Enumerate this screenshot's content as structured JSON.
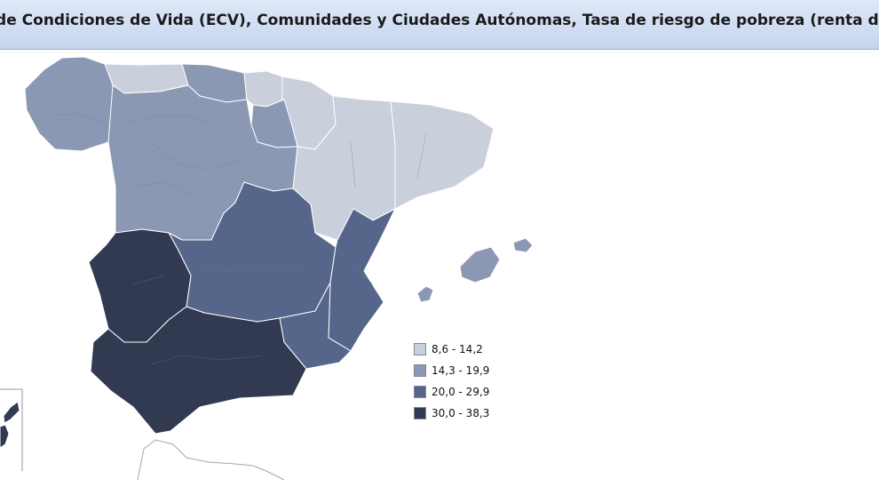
{
  "header": {
    "title": "Encuesta de Condiciones de Vida (ECV), Comunidades y Ciudades Autónomas, Tasa de riesgo de pobreza (renta del año anterior a la entrevista)"
  },
  "legend": {
    "items": [
      {
        "label": "8,6 - 14,2",
        "color": "#c9d0dc"
      },
      {
        "label": "14,3 - 19,9",
        "color": "#8b98b3"
      },
      {
        "label": "20,0 - 29,9",
        "color": "#56668a"
      },
      {
        "label": "30,0 - 38,3",
        "color": "#323a51"
      }
    ]
  }
}
